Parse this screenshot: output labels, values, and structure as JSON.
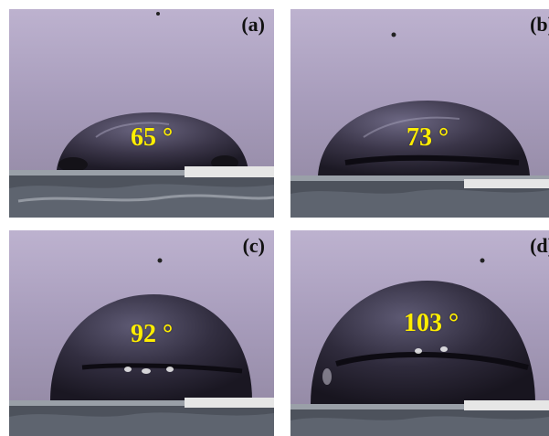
{
  "figure": {
    "panels": [
      {
        "id": "a",
        "label": "(a)",
        "contact_angle": "65 °"
      },
      {
        "id": "b",
        "label": "(b)",
        "contact_angle": "73 °"
      },
      {
        "id": "c",
        "label": "(c)",
        "contact_angle": "92 °"
      },
      {
        "id": "d",
        "label": "(d)",
        "contact_angle": "103 °"
      }
    ],
    "colors": {
      "angle_text": "#ffee00",
      "label_text": "#111111",
      "background": "#b3a8c6",
      "droplet": "#2e2a3a",
      "substrate": "#4a4f5a"
    }
  }
}
